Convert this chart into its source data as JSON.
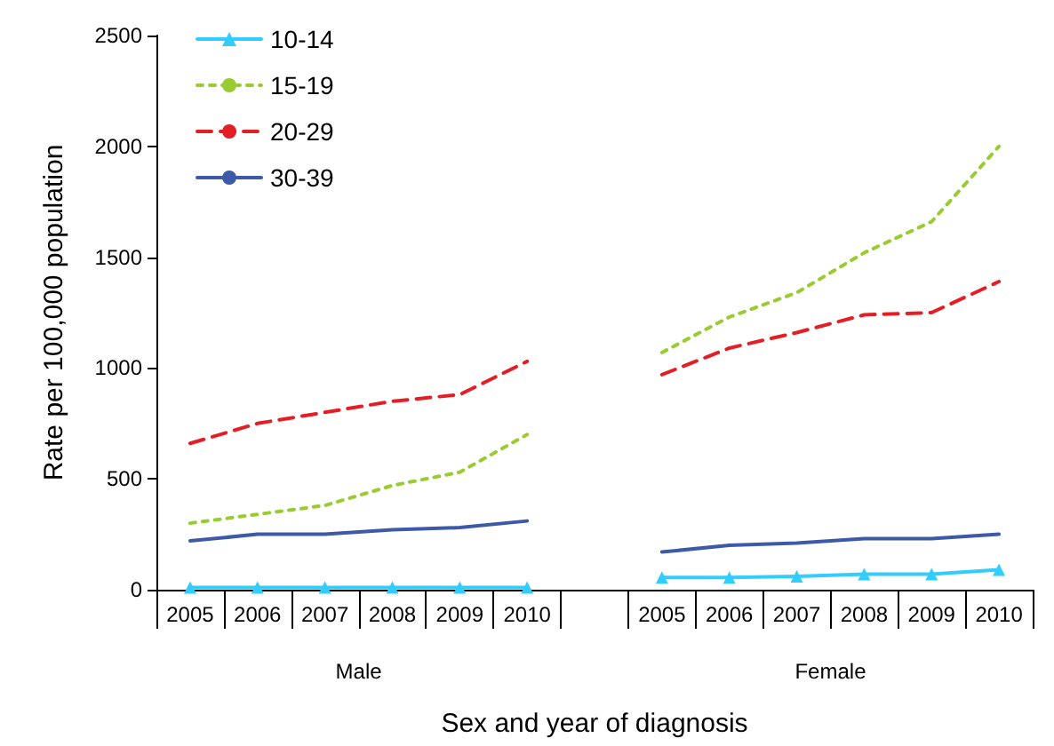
{
  "chart_data": {
    "type": "line",
    "xlabel": "Sex and year of diagnosis",
    "ylabel": "Rate per 100,000 population",
    "categories": [
      "2005",
      "2006",
      "2007",
      "2008",
      "2009",
      "2010",
      null,
      "2005",
      "2006",
      "2007",
      "2008",
      "2009",
      "2010"
    ],
    "ylim": [
      0,
      2500
    ],
    "yticks": [
      0,
      500,
      1000,
      1500,
      2000,
      2500
    ],
    "grid": false,
    "legend": "top left",
    "annotations": [
      "Male",
      "Female"
    ],
    "series": [
      {
        "name": "10-14",
        "color": "#33ccff",
        "marker": "triangle",
        "line_style": "solid",
        "values": [
          10,
          10,
          10,
          10,
          10,
          10,
          null,
          55,
          55,
          60,
          70,
          70,
          90
        ]
      },
      {
        "name": "15-19",
        "color": "#99cc33",
        "marker": "none",
        "line_style": "dotted",
        "values": [
          300,
          340,
          380,
          470,
          530,
          700,
          null,
          1070,
          1230,
          1340,
          1520,
          1660,
          2000
        ]
      },
      {
        "name": "20-29",
        "color": "#e31e24",
        "marker": "none",
        "line_style": "dashed",
        "values": [
          660,
          750,
          800,
          850,
          880,
          1030,
          null,
          970,
          1090,
          1160,
          1240,
          1250,
          1390
        ]
      },
      {
        "name": "30-39",
        "color": "#3d5aa8",
        "marker": "none",
        "line_style": "solid",
        "values": [
          220,
          250,
          250,
          270,
          280,
          310,
          null,
          170,
          200,
          210,
          230,
          230,
          250
        ]
      }
    ]
  }
}
